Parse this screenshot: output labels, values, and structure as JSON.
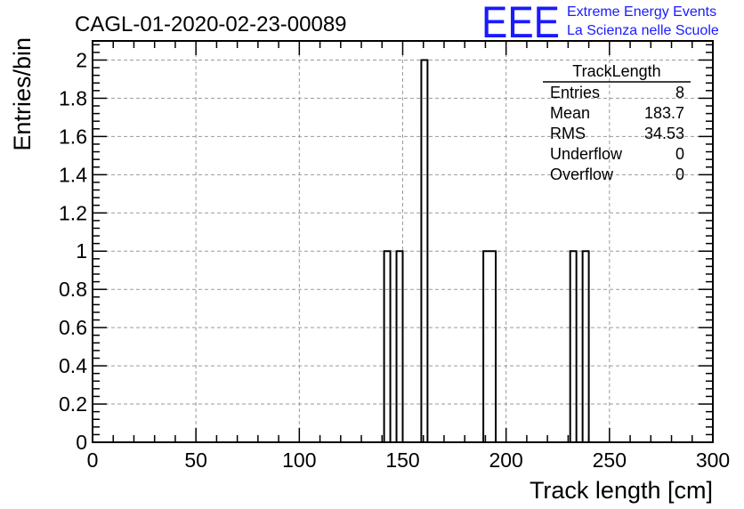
{
  "header": {
    "run_title": "CAGL-01-2020-02-23-00089",
    "logo_letters": "EEE",
    "logo_line1": "Extreme Energy Events",
    "logo_line2": "La Scienza nelle Scuole"
  },
  "stats_box": {
    "name": "TrackLength",
    "rows": [
      {
        "label": "Entries",
        "value": "8"
      },
      {
        "label": "Mean",
        "value": "183.7"
      },
      {
        "label": "RMS",
        "value": "34.53"
      },
      {
        "label": "Underflow",
        "value": "0"
      },
      {
        "label": "Overflow",
        "value": "0"
      }
    ]
  },
  "colors": {
    "logo": "#1a1aff",
    "grid": "#9a9a9a",
    "line": "#000000"
  },
  "chart_data": {
    "type": "bar",
    "style": "histogram-step",
    "title": "CAGL-01-2020-02-23-00089",
    "xlabel": "Track length [cm]",
    "ylabel": "Entries/bin",
    "xlim": [
      0,
      300
    ],
    "ylim": [
      0,
      2.1
    ],
    "x_ticks": [
      0,
      50,
      100,
      150,
      200,
      250,
      300
    ],
    "y_ticks": [
      0,
      0.2,
      0.4,
      0.6,
      0.8,
      1,
      1.2,
      1.4,
      1.6,
      1.8,
      2
    ],
    "y_tick_labels": [
      "0",
      "0.2",
      "0.4",
      "0.6",
      "0.8",
      "1",
      "1.2",
      "1.4",
      "1.6",
      "1.8",
      "2"
    ],
    "grid": true,
    "bin_width": 3,
    "bins": [
      {
        "x0": 141,
        "x1": 144,
        "count": 1
      },
      {
        "x0": 147,
        "x1": 150,
        "count": 1
      },
      {
        "x0": 159,
        "x1": 162,
        "count": 2
      },
      {
        "x0": 189,
        "x1": 195,
        "count": 1
      },
      {
        "x0": 231,
        "x1": 234,
        "count": 1
      },
      {
        "x0": 237,
        "x1": 240,
        "count": 1
      }
    ]
  }
}
